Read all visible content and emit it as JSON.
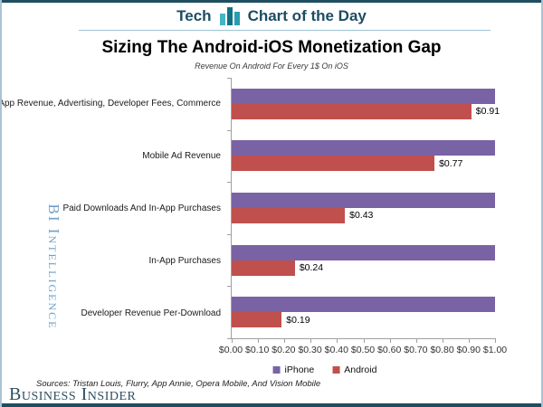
{
  "header": {
    "section": "Tech",
    "title": "Chart of the Day"
  },
  "chart": {
    "title": "Sizing The Android-iOS Monetization Gap",
    "subtitle": "Revenue On Android For Every 1$ On iOS"
  },
  "watermark": {
    "text": "BI Intelligence"
  },
  "footer": {
    "sources": "Sources: Tristan Louis, Flurry, App Annie, Opera Mobile, And Vision Mobile",
    "logo": "Business Insider"
  },
  "colors": {
    "iphone_purple": "#7a63a4",
    "android_red": "#c0504d",
    "accent_teal": "#1f4e61",
    "watermark_blue": "#6fa0c7",
    "logo_navy": "#2d4e60"
  },
  "chart_data": {
    "type": "bar",
    "orientation": "horizontal",
    "title": "Sizing The Android-iOS Monetization Gap",
    "subtitle": "Revenue On Android For Every 1$ On iOS",
    "categories": [
      "App Revenue, Advertising, Developer Fees, Commerce",
      "Mobile Ad Revenue",
      "Paid Downloads And In-App Purchases",
      "In-App Purchases",
      "Developer Revenue Per-Download"
    ],
    "series": [
      {
        "name": "iPhone",
        "color": "#7a63a4",
        "values": [
          1.0,
          1.0,
          1.0,
          1.0,
          1.0
        ]
      },
      {
        "name": "Android",
        "color": "#c0504d",
        "values": [
          0.91,
          0.77,
          0.43,
          0.24,
          0.19
        ]
      }
    ],
    "data_labels": [
      "$0.91",
      "$0.77",
      "$0.43",
      "$0.24",
      "$0.19"
    ],
    "x_ticks": [
      "$0.00",
      "$0.10",
      "$0.20",
      "$0.30",
      "$0.40",
      "$0.50",
      "$0.60",
      "$0.70",
      "$0.80",
      "$0.90",
      "$1.00"
    ],
    "xlim": [
      0,
      1
    ],
    "grid": false,
    "legend_position": "bottom"
  }
}
